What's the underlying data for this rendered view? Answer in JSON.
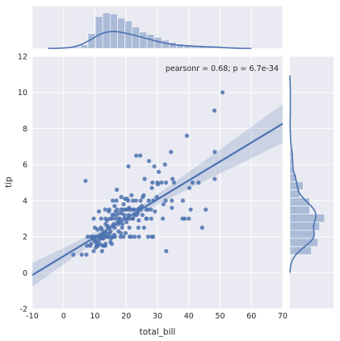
{
  "chart_data": {
    "type": "scatter",
    "title": "",
    "xlabel": "total_bill",
    "ylabel": "tip",
    "xlim": [
      -10,
      70
    ],
    "ylim": [
      -2,
      12
    ],
    "xticks": [
      -10,
      0,
      10,
      20,
      30,
      40,
      50,
      60,
      70
    ],
    "yticks": [
      -2,
      0,
      2,
      4,
      6,
      8,
      10,
      12
    ],
    "grid": true,
    "annotation": "pearsonr = 0.68; p = 6.7e-34",
    "colors": {
      "main": "#4c72b0",
      "background": "#eaeaf2",
      "grid": "#ffffff"
    },
    "regression": {
      "slope": 0.105,
      "intercept": 0.92,
      "ci_halfwidth_at_mean": 0.18,
      "x_mean": 19.8
    },
    "points": [
      [
        3.1,
        1.0
      ],
      [
        5.8,
        1.0
      ],
      [
        7.3,
        1.0
      ],
      [
        7.5,
        1.5
      ],
      [
        7.7,
        2.0
      ],
      [
        8.5,
        1.5
      ],
      [
        8.8,
        1.6
      ],
      [
        9.6,
        1.2
      ],
      [
        9.7,
        1.8
      ],
      [
        10.1,
        1.8
      ],
      [
        10.3,
        1.7
      ],
      [
        10.3,
        2.0
      ],
      [
        10.3,
        1.4
      ],
      [
        10.6,
        1.6
      ],
      [
        11.0,
        1.5
      ],
      [
        11.2,
        1.8
      ],
      [
        11.4,
        2.0
      ],
      [
        11.6,
        1.6
      ],
      [
        12.0,
        2.0
      ],
      [
        12.3,
        1.2
      ],
      [
        12.5,
        1.5
      ],
      [
        12.7,
        1.9
      ],
      [
        12.8,
        2.0
      ],
      [
        13.0,
        2.0
      ],
      [
        13.3,
        1.5
      ],
      [
        13.4,
        1.6
      ],
      [
        13.6,
        2.2
      ],
      [
        14.0,
        2.6
      ],
      [
        14.3,
        2.0
      ],
      [
        14.5,
        2.5
      ],
      [
        14.8,
        3.0
      ],
      [
        15.0,
        1.7
      ],
      [
        15.4,
        1.6
      ],
      [
        15.5,
        2.0
      ],
      [
        15.7,
        2.6
      ],
      [
        16.0,
        2.0
      ],
      [
        16.3,
        2.5
      ],
      [
        16.5,
        3.0
      ],
      [
        16.9,
        3.2
      ],
      [
        17.3,
        2.8
      ],
      [
        17.5,
        2.3
      ],
      [
        17.8,
        3.3
      ],
      [
        18.0,
        3.0
      ],
      [
        18.2,
        2.0
      ],
      [
        18.4,
        3.5
      ],
      [
        18.7,
        2.5
      ],
      [
        19.0,
        3.5
      ],
      [
        19.4,
        3.2
      ],
      [
        19.8,
        3.5
      ],
      [
        20.1,
        2.8
      ],
      [
        20.3,
        3.0
      ],
      [
        20.6,
        4.0
      ],
      [
        20.9,
        3.5
      ],
      [
        21.0,
        3.0
      ],
      [
        21.5,
        3.5
      ],
      [
        21.7,
        2.0
      ],
      [
        22.1,
        4.0
      ],
      [
        22.4,
        3.5
      ],
      [
        22.8,
        3.2
      ],
      [
        23.1,
        4.0
      ],
      [
        23.3,
        3.2
      ],
      [
        23.7,
        3.5
      ],
      [
        24.0,
        3.5
      ],
      [
        24.1,
        2.0
      ],
      [
        24.6,
        4.0
      ],
      [
        24.7,
        3.5
      ],
      [
        25.0,
        3.7
      ],
      [
        25.3,
        4.2
      ],
      [
        25.6,
        4.3
      ],
      [
        25.9,
        5.2
      ],
      [
        26.4,
        3.0
      ],
      [
        26.9,
        3.5
      ],
      [
        27.2,
        4.0
      ],
      [
        27.3,
        6.2
      ],
      [
        28.0,
        3.0
      ],
      [
        28.2,
        4.7
      ],
      [
        28.4,
        5.0
      ],
      [
        28.6,
        2.0
      ],
      [
        29.0,
        5.9
      ],
      [
        29.8,
        4.2
      ],
      [
        30.0,
        5.0
      ],
      [
        30.4,
        5.6
      ],
      [
        31.3,
        5.0
      ],
      [
        31.7,
        3.0
      ],
      [
        32.4,
        6.0
      ],
      [
        32.7,
        5.0
      ],
      [
        32.8,
        1.2
      ],
      [
        34.3,
        6.7
      ],
      [
        34.6,
        3.6
      ],
      [
        34.8,
        5.2
      ],
      [
        35.3,
        5.0
      ],
      [
        38.0,
        3.0
      ],
      [
        38.1,
        4.0
      ],
      [
        38.7,
        3.0
      ],
      [
        39.4,
        7.6
      ],
      [
        40.2,
        4.7
      ],
      [
        40.6,
        3.5
      ],
      [
        41.2,
        5.0
      ],
      [
        43.1,
        5.0
      ],
      [
        44.3,
        2.5
      ],
      [
        45.4,
        3.5
      ],
      [
        48.2,
        9.0
      ],
      [
        48.3,
        6.7
      ],
      [
        48.3,
        5.2
      ],
      [
        50.8,
        10.0
      ],
      [
        20.7,
        5.9
      ],
      [
        23.2,
        6.5
      ],
      [
        24.5,
        6.5
      ],
      [
        15.7,
        4.0
      ],
      [
        18.4,
        4.2
      ],
      [
        12.0,
        3.0
      ],
      [
        13.8,
        2.0
      ],
      [
        16.4,
        2.0
      ],
      [
        17.1,
        3.5
      ],
      [
        19.1,
        2.0
      ],
      [
        21.0,
        2.5
      ],
      [
        22.2,
        3.0
      ],
      [
        13.0,
        1.5
      ],
      [
        11.9,
        2.5
      ],
      [
        9.4,
        2.0
      ],
      [
        14.1,
        2.0
      ],
      [
        17.9,
        2.8
      ],
      [
        20.0,
        3.5
      ],
      [
        25.2,
        3.2
      ],
      [
        26.5,
        3.5
      ],
      [
        27.0,
        2.0
      ],
      [
        15.4,
        3.0
      ],
      [
        16.6,
        3.4
      ],
      [
        18.8,
        2.7
      ],
      [
        21.7,
        4.3
      ],
      [
        23.7,
        3.3
      ],
      [
        14.7,
        2.2
      ],
      [
        13.4,
        3.0
      ],
      [
        11.7,
        1.9
      ],
      [
        10.6,
        1.5
      ],
      [
        12.4,
        1.9
      ],
      [
        16.0,
        2.7
      ],
      [
        19.4,
        3.0
      ],
      [
        20.7,
        3.2
      ],
      [
        22.5,
        3.5
      ],
      [
        24.3,
        3.6
      ],
      [
        28.2,
        2.0
      ],
      [
        29.2,
        3.4
      ],
      [
        31.9,
        3.8
      ],
      [
        34.6,
        4.0
      ],
      [
        16.9,
        4.0
      ],
      [
        14.2,
        2.5
      ],
      [
        15.8,
        3.2
      ],
      [
        17.6,
        3.0
      ],
      [
        19.6,
        4.1
      ],
      [
        12.9,
        2.2
      ],
      [
        10.8,
        2.4
      ],
      [
        8.8,
        2.0
      ],
      [
        10.0,
        2.5
      ],
      [
        11.3,
        3.4
      ],
      [
        13.3,
        3.5
      ],
      [
        15.0,
        2.3
      ],
      [
        18.3,
        2.2
      ],
      [
        22.7,
        2.0
      ],
      [
        24.0,
        2.9
      ],
      [
        7.0,
        5.1
      ],
      [
        17.0,
        4.6
      ],
      [
        16.3,
        3.7
      ],
      [
        20.3,
        4.1
      ],
      [
        21.1,
        2.0
      ],
      [
        25.7,
        2.5
      ],
      [
        28.7,
        4.0
      ],
      [
        30.1,
        4.9
      ],
      [
        32.6,
        4.0
      ],
      [
        40.0,
        3.0
      ],
      [
        15.1,
        1.9
      ],
      [
        12.6,
        2.1
      ],
      [
        9.6,
        3.0
      ],
      [
        13.4,
        2.7
      ],
      [
        18.6,
        3.3
      ],
      [
        19.8,
        2.2
      ],
      [
        14.6,
        3.5
      ],
      [
        11.8,
        2.0
      ],
      [
        26.6,
        3.0
      ],
      [
        27.9,
        3.5
      ],
      [
        22.0,
        3.0
      ],
      [
        23.9,
        2.5
      ],
      [
        16.2,
        2.1
      ],
      [
        17.5,
        2.7
      ],
      [
        15.6,
        3.2
      ],
      [
        13.9,
        2.9
      ],
      [
        14.5,
        3.4
      ],
      [
        20.9,
        3.6
      ],
      [
        19.2,
        3.8
      ],
      [
        12.2,
        2.4
      ]
    ],
    "x_hist": {
      "bin_edges": [
        3.07,
        5.43,
        7.78,
        10.14,
        12.5,
        14.85,
        17.21,
        19.57,
        21.92,
        24.28,
        26.63,
        28.99,
        31.35,
        33.7,
        36.06,
        38.42,
        40.77,
        43.13,
        45.48,
        47.84,
        50.2,
        52.55
      ],
      "heights": [
        0.004,
        0.01,
        0.04,
        0.086,
        0.096,
        0.093,
        0.082,
        0.074,
        0.058,
        0.044,
        0.038,
        0.03,
        0.022,
        0.016,
        0.012,
        0.008,
        0.008,
        0.006,
        0.006,
        0.004,
        0.004
      ],
      "max": 0.1
    },
    "y_hist": {
      "bin_edges": [
        1.0,
        1.45,
        1.9,
        2.35,
        2.8,
        3.25,
        3.7,
        4.15,
        4.6,
        5.05,
        5.5,
        5.95,
        6.4,
        6.85
      ],
      "heights": [
        0.26,
        0.34,
        0.3,
        0.36,
        0.42,
        0.24,
        0.24,
        0.12,
        0.16,
        0.08,
        0.04,
        0.04,
        0.04
      ],
      "max": 0.45
    }
  }
}
